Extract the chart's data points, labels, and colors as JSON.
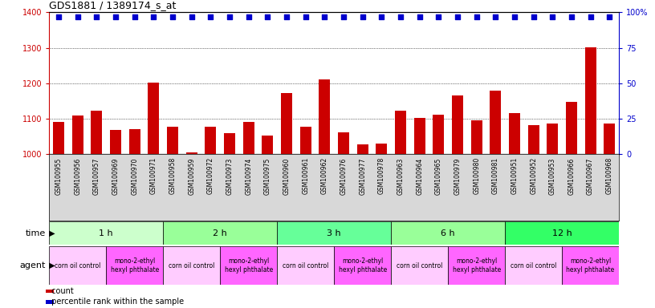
{
  "title": "GDS1881 / 1389174_s_at",
  "samples": [
    "GSM100955",
    "GSM100956",
    "GSM100957",
    "GSM100969",
    "GSM100970",
    "GSM100971",
    "GSM100958",
    "GSM100959",
    "GSM100972",
    "GSM100973",
    "GSM100974",
    "GSM100975",
    "GSM100960",
    "GSM100961",
    "GSM100962",
    "GSM100976",
    "GSM100977",
    "GSM100978",
    "GSM100963",
    "GSM100964",
    "GSM100965",
    "GSM100979",
    "GSM100980",
    "GSM100981",
    "GSM100951",
    "GSM100952",
    "GSM100953",
    "GSM100966",
    "GSM100967",
    "GSM100968"
  ],
  "counts": [
    1090,
    1108,
    1122,
    1068,
    1070,
    1202,
    1078,
    1005,
    1078,
    1060,
    1090,
    1052,
    1172,
    1078,
    1210,
    1062,
    1028,
    1030,
    1122,
    1102,
    1110,
    1165,
    1095,
    1178,
    1115,
    1082,
    1085,
    1148,
    1302,
    1085
  ],
  "percentile_ranks": [
    97,
    97,
    97,
    97,
    97,
    97,
    97,
    97,
    97,
    97,
    97,
    97,
    97,
    97,
    97,
    97,
    97,
    97,
    97,
    97,
    97,
    97,
    97,
    97,
    97,
    97,
    97,
    97,
    97,
    97
  ],
  "ylim_left": [
    1000,
    1400
  ],
  "ylim_right": [
    0,
    100
  ],
  "yticks_left": [
    1000,
    1100,
    1200,
    1300,
    1400
  ],
  "yticks_right": [
    0,
    25,
    50,
    75,
    100
  ],
  "bar_color": "#cc0000",
  "dot_color": "#0000cc",
  "time_groups": [
    {
      "label": "1 h",
      "start": 0,
      "end": 6
    },
    {
      "label": "2 h",
      "start": 6,
      "end": 12
    },
    {
      "label": "3 h",
      "start": 12,
      "end": 18
    },
    {
      "label": "6 h",
      "start": 18,
      "end": 24
    },
    {
      "label": "12 h",
      "start": 24,
      "end": 30
    }
  ],
  "time_group_colors": [
    "#ccffcc",
    "#99ff99",
    "#66ff99",
    "#99ff99",
    "#33ff66"
  ],
  "agent_groups": [
    {
      "label": "corn oil control",
      "start": 0,
      "end": 3,
      "color": "#ffccff"
    },
    {
      "label": "mono-2-ethyl\nhexyl phthalate",
      "start": 3,
      "end": 6,
      "color": "#ff66ff"
    },
    {
      "label": "corn oil control",
      "start": 6,
      "end": 9,
      "color": "#ffccff"
    },
    {
      "label": "mono-2-ethyl\nhexyl phthalate",
      "start": 9,
      "end": 12,
      "color": "#ff66ff"
    },
    {
      "label": "corn oil control",
      "start": 12,
      "end": 15,
      "color": "#ffccff"
    },
    {
      "label": "mono-2-ethyl\nhexyl phthalate",
      "start": 15,
      "end": 18,
      "color": "#ff66ff"
    },
    {
      "label": "corn oil control",
      "start": 18,
      "end": 21,
      "color": "#ffccff"
    },
    {
      "label": "mono-2-ethyl\nhexyl phthalate",
      "start": 21,
      "end": 24,
      "color": "#ff66ff"
    },
    {
      "label": "corn oil control",
      "start": 24,
      "end": 27,
      "color": "#ffccff"
    },
    {
      "label": "mono-2-ethyl\nhexyl phthalate",
      "start": 27,
      "end": 30,
      "color": "#ff66ff"
    }
  ],
  "bg_color": "#ffffff",
  "label_bg_color": "#d8d8d8",
  "grid_color": "#000000",
  "left_tick_color": "#cc0000",
  "right_tick_color": "#0000cc",
  "sample_label_fontsize": 5.5,
  "time_label_fontsize": 8,
  "agent_label_fontsize": 5.5,
  "title_fontsize": 9
}
